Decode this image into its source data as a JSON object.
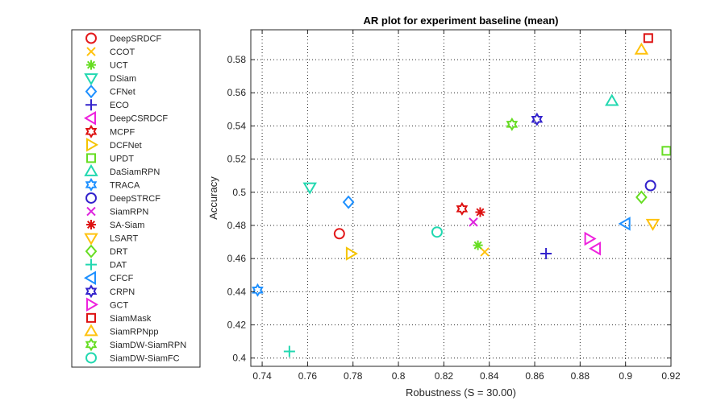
{
  "chart_data": {
    "type": "scatter",
    "title": "AR plot for experiment baseline (mean)",
    "xlabel": "Robustness (S = 30.00)",
    "ylabel": "Accuracy",
    "xlim": [
      0.735,
      0.92
    ],
    "ylim": [
      0.395,
      0.598
    ],
    "xticks": [
      0.74,
      0.76,
      0.78,
      0.8,
      0.82,
      0.84,
      0.86,
      0.88,
      0.9,
      0.92
    ],
    "xtick_labels": [
      "0.74",
      "0.76",
      "0.78",
      "0.8",
      "0.82",
      "0.84",
      "0.86",
      "0.88",
      "0.9",
      "0.92"
    ],
    "yticks": [
      0.4,
      0.42,
      0.44,
      0.46,
      0.48,
      0.5,
      0.52,
      0.54,
      0.56,
      0.58
    ],
    "ytick_labels": [
      "0.4",
      "0.42",
      "0.44",
      "0.46",
      "0.48",
      "0.5",
      "0.52",
      "0.54",
      "0.56",
      "0.58"
    ],
    "grid": true,
    "legend_position": "left, outside plot",
    "series": [
      {
        "name": "DeepSRDCF",
        "marker": "circle",
        "color": "#e31a1c",
        "x": 0.774,
        "y": 0.475
      },
      {
        "name": "CCOT",
        "marker": "x",
        "color": "#ffc20e",
        "x": 0.838,
        "y": 0.464
      },
      {
        "name": "UCT",
        "marker": "asterisk",
        "color": "#66dd22",
        "x": 0.835,
        "y": 0.468
      },
      {
        "name": "DSiam",
        "marker": "triangle-down",
        "color": "#22d8b0",
        "x": 0.761,
        "y": 0.503
      },
      {
        "name": "CFNet",
        "marker": "diamond",
        "color": "#1e90ff",
        "x": 0.778,
        "y": 0.494
      },
      {
        "name": "ECO",
        "marker": "plus",
        "color": "#3322cc",
        "x": 0.865,
        "y": 0.463
      },
      {
        "name": "DeepCSRDCF",
        "marker": "triangle-left",
        "color": "#ee22dd",
        "x": 0.887,
        "y": 0.466
      },
      {
        "name": "MCPF",
        "marker": "hexagram",
        "color": "#dd1111",
        "x": 0.828,
        "y": 0.49
      },
      {
        "name": "DCFNet",
        "marker": "triangle-right",
        "color": "#f5c400",
        "x": 0.779,
        "y": 0.463
      },
      {
        "name": "UPDT",
        "marker": "square",
        "color": "#66dd22",
        "x": 0.918,
        "y": 0.525
      },
      {
        "name": "DaSiamRPN",
        "marker": "triangle-up",
        "color": "#22d8b0",
        "x": 0.894,
        "y": 0.555
      },
      {
        "name": "TRACA",
        "marker": "hexagram",
        "color": "#1e90ff",
        "x": 0.738,
        "y": 0.441
      },
      {
        "name": "DeepSTRCF",
        "marker": "circle",
        "color": "#3322cc",
        "x": 0.911,
        "y": 0.504
      },
      {
        "name": "SiamRPN",
        "marker": "x",
        "color": "#dd22dd",
        "x": 0.833,
        "y": 0.482
      },
      {
        "name": "SA-Siam",
        "marker": "asterisk",
        "color": "#dd1111",
        "x": 0.836,
        "y": 0.488
      },
      {
        "name": "LSART",
        "marker": "triangle-down",
        "color": "#ffc20e",
        "x": 0.912,
        "y": 0.481
      },
      {
        "name": "DRT",
        "marker": "diamond",
        "color": "#66dd22",
        "x": 0.907,
        "y": 0.497
      },
      {
        "name": "DAT",
        "marker": "plus",
        "color": "#22d8b0",
        "x": 0.752,
        "y": 0.404
      },
      {
        "name": "CFCF",
        "marker": "triangle-left",
        "color": "#1e90ff",
        "x": 0.9,
        "y": 0.481
      },
      {
        "name": "CRPN",
        "marker": "hexagram",
        "color": "#3322cc",
        "x": 0.861,
        "y": 0.544
      },
      {
        "name": "GCT",
        "marker": "triangle-right",
        "color": "#ee22dd",
        "x": 0.884,
        "y": 0.472
      },
      {
        "name": "SiamMask",
        "marker": "square",
        "color": "#dd1111",
        "x": 0.91,
        "y": 0.593
      },
      {
        "name": "SiamRPNpp",
        "marker": "triangle-up",
        "color": "#ffc20e",
        "x": 0.907,
        "y": 0.586
      },
      {
        "name": "SiamDW-SiamRPN",
        "marker": "hexagram",
        "color": "#66dd22",
        "x": 0.85,
        "y": 0.541
      },
      {
        "name": "SiamDW-SiamFC",
        "marker": "circle",
        "color": "#22d8b0",
        "x": 0.817,
        "y": 0.476
      }
    ]
  }
}
